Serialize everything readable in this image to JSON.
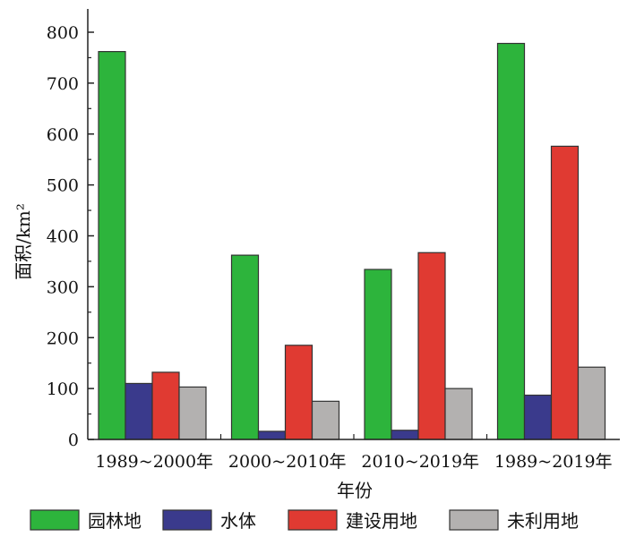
{
  "chart_data": {
    "type": "bar",
    "title": "",
    "xlabel": "年份",
    "ylabel": "面积/km²",
    "ylim": [
      0,
      800
    ],
    "yticks": [
      0,
      100,
      200,
      300,
      400,
      500,
      600,
      700,
      800
    ],
    "grid": false,
    "legend_position": "bottom",
    "categories": [
      "1989~2000年",
      "2000~2010年",
      "2010~2019年",
      "1989~2019年"
    ],
    "series": [
      {
        "name": "园林地",
        "color": "#2db43c",
        "values": [
          762,
          362,
          334,
          778
        ]
      },
      {
        "name": "水体",
        "color": "#3a3a8c",
        "values": [
          110,
          16,
          18,
          87
        ]
      },
      {
        "name": "建设用地",
        "color": "#e03a32",
        "values": [
          132,
          185,
          367,
          576
        ]
      },
      {
        "name": "未利用地",
        "color": "#b3b1b0",
        "values": [
          103,
          75,
          100,
          142
        ]
      }
    ]
  }
}
